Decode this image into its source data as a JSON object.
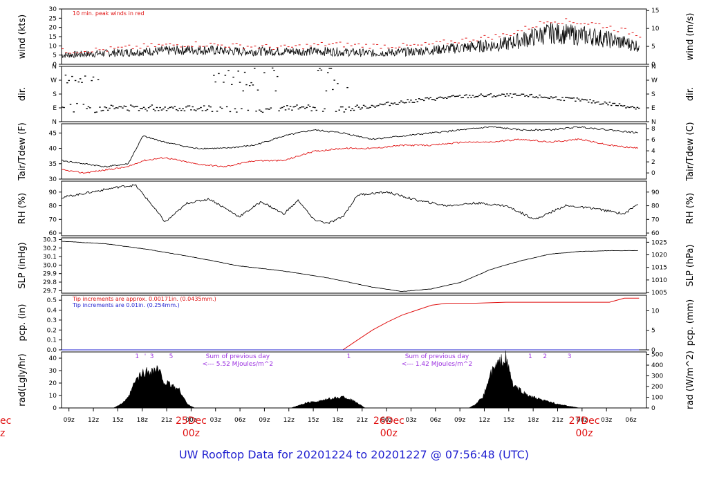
{
  "footer": {
    "title": "UW Rooftop Data for 20201224  to  20201227 @ 07:56:48  (UTC)"
  },
  "colors": {
    "black": "#000000",
    "red": "#e01010",
    "blue": "#1f1fd0",
    "purple": "#9b30e0"
  },
  "x_axis": {
    "hour_ticks": [
      "09z",
      "12z",
      "15z",
      "18z",
      "21z",
      "00z",
      "03z",
      "06z",
      "09z",
      "12z",
      "15z",
      "18z",
      "21z",
      "00z",
      "03z",
      "06z",
      "09z",
      "12z",
      "15z",
      "18z",
      "21z",
      "00z",
      "03z",
      "06z"
    ],
    "day_marks": [
      {
        "date": "25Dec",
        "hour": "00z"
      },
      {
        "date": "26Dec",
        "hour": "00z"
      },
      {
        "date": "27Dec",
        "hour": "00z"
      }
    ],
    "left_clipped": {
      "date": "ec",
      "hour": "z"
    }
  },
  "chart_data": [
    {
      "id": "wind",
      "type": "line",
      "ylabel_left": "wind (kts)",
      "ylabel_right": "wind (m/s)",
      "left_ticks": [
        "0",
        "5",
        "10",
        "15",
        "20",
        "25",
        "30"
      ],
      "left_range": [
        0,
        30
      ],
      "right_ticks": [
        "0",
        "5",
        "10",
        "15"
      ],
      "right_range_ms": [
        0,
        15
      ],
      "annotation": "10 min. peak winds in red",
      "series": [
        {
          "color": "red",
          "x": [
            0,
            6,
            12,
            18,
            24,
            30,
            36,
            42,
            48,
            54,
            60,
            66,
            72,
            78
          ],
          "values": [
            7,
            8,
            10,
            11,
            10,
            9,
            11,
            10,
            10,
            13,
            16,
            24,
            22,
            16
          ]
        },
        {
          "color": "black",
          "x": [
            0,
            6,
            12,
            18,
            24,
            30,
            36,
            42,
            48,
            54,
            60,
            66,
            72,
            78
          ],
          "values": [
            5,
            6,
            7,
            8,
            7,
            7,
            7,
            6,
            7,
            9,
            11,
            17,
            15,
            10
          ]
        }
      ]
    },
    {
      "id": "dir",
      "type": "scatter",
      "ylabel_left": "dir.",
      "ylabel_right": "dir.",
      "left_ticks": [
        "N",
        "E",
        "S",
        "W",
        "N"
      ],
      "right_ticks": [
        "N",
        "E",
        "S",
        "W",
        "N"
      ]
    },
    {
      "id": "temp",
      "type": "line",
      "ylabel_left": "Tair/Tdew (F)",
      "ylabel_right": "Tair/Tdew (C)",
      "left_ticks": [
        "30",
        "35",
        "40",
        "45"
      ],
      "left_range": [
        30,
        48
      ],
      "right_ticks": [
        "0",
        "2",
        "4",
        "6",
        "8"
      ],
      "series": [
        {
          "name": "Tair",
          "color": "black",
          "x": [
            0,
            3,
            6,
            9,
            11,
            14,
            18,
            22,
            26,
            30,
            34,
            38,
            42,
            46,
            50,
            54,
            58,
            62,
            66,
            70,
            74,
            78
          ],
          "values": [
            36,
            35,
            34,
            35,
            44,
            42,
            40,
            40,
            41,
            44,
            46,
            45,
            43,
            44,
            45,
            46,
            47,
            46,
            46,
            47,
            46,
            45
          ]
        },
        {
          "name": "Tdew",
          "color": "red",
          "x": [
            0,
            3,
            6,
            9,
            11,
            14,
            18,
            22,
            26,
            30,
            34,
            38,
            42,
            46,
            50,
            54,
            58,
            62,
            66,
            70,
            74,
            78
          ],
          "values": [
            33,
            32,
            33,
            34,
            36,
            37,
            35,
            34,
            36,
            36,
            39,
            40,
            40,
            41,
            41,
            42,
            42,
            43,
            42,
            43,
            41,
            40
          ]
        }
      ]
    },
    {
      "id": "rh",
      "type": "line",
      "ylabel_left": "RH (%)",
      "ylabel_right": "RH (%)",
      "left_ticks": [
        "60",
        "70",
        "80",
        "90"
      ],
      "left_range": [
        58,
        98
      ],
      "right_ticks": [
        "60",
        "70",
        "80",
        "90"
      ],
      "series": [
        {
          "color": "black",
          "x": [
            0,
            4,
            8,
            10,
            12,
            14,
            17,
            20,
            24,
            27,
            30,
            32,
            34,
            36,
            38,
            40,
            44,
            48,
            52,
            56,
            60,
            64,
            68,
            72,
            76,
            78
          ],
          "values": [
            86,
            90,
            94,
            95,
            82,
            68,
            82,
            85,
            72,
            83,
            74,
            84,
            70,
            67,
            72,
            88,
            90,
            84,
            80,
            82,
            80,
            70,
            80,
            78,
            74,
            82
          ]
        }
      ]
    },
    {
      "id": "slp",
      "type": "line",
      "ylabel_left": "SLP (inHg)",
      "ylabel_right": "SLP (hPa)",
      "left_ticks": [
        "29.7",
        "29.8",
        "29.9",
        "30.0",
        "30.1",
        "30.2",
        "30.3"
      ],
      "left_range": [
        29.67,
        30.32
      ],
      "right_ticks": [
        "1005",
        "1010",
        "1015",
        "1020",
        "1025"
      ],
      "series": [
        {
          "color": "black",
          "x": [
            0,
            6,
            12,
            18,
            24,
            30,
            36,
            42,
            46,
            50,
            54,
            58,
            62,
            66,
            70,
            74,
            78
          ],
          "values": [
            30.28,
            30.25,
            30.18,
            30.09,
            29.99,
            29.93,
            29.85,
            29.74,
            29.69,
            29.72,
            29.8,
            29.95,
            30.05,
            30.13,
            30.16,
            30.17,
            30.17
          ]
        }
      ]
    },
    {
      "id": "pcp",
      "type": "line",
      "ylabel_left": "pcp. (in)",
      "ylabel_right": "pcp. (mm)",
      "left_ticks": [
        "0.0",
        "0.1",
        "0.2",
        "0.3",
        "0.4",
        "0.5"
      ],
      "left_range": [
        0,
        0.55
      ],
      "right_ticks": [
        "0",
        "5",
        "10"
      ],
      "notes": [
        {
          "text": "Tip increments are approx. 0.00171in. (0.0435mm.)",
          "color": "red"
        },
        {
          "text": "Tip increments are 0.01in. (0.254mm.)",
          "color": "blue"
        }
      ],
      "series": [
        {
          "color": "red",
          "x": [
            0,
            38,
            40,
            42,
            44,
            46,
            48,
            50,
            52,
            56,
            60,
            66,
            74,
            76,
            78
          ],
          "values": [
            0,
            0,
            0.1,
            0.2,
            0.28,
            0.35,
            0.4,
            0.45,
            0.47,
            0.47,
            0.48,
            0.48,
            0.48,
            0.52,
            0.52
          ]
        },
        {
          "color": "blue",
          "x": [
            0,
            78
          ],
          "values": [
            0,
            0
          ]
        }
      ]
    },
    {
      "id": "rad",
      "type": "area",
      "ylabel_left": "rad(Lgly/hr)",
      "ylabel_right": "rad (W/m^2)",
      "left_ticks": [
        "0",
        "10",
        "20",
        "30",
        "40"
      ],
      "left_range": [
        0,
        45
      ],
      "right_ticks": [
        "0",
        "100",
        "200",
        "300",
        "400",
        "500"
      ],
      "markers": [
        {
          "text": "1",
          "x": 10.2
        },
        {
          "text": "'",
          "x": 11.3
        },
        {
          "text": "3",
          "x": 12.2
        },
        {
          "text": "5",
          "x": 14.8
        },
        {
          "text": "1",
          "x": 38.8
        },
        {
          "text": "1",
          "x": 63.3
        },
        {
          "text": "2",
          "x": 65.3
        },
        {
          "text": "3",
          "x": 68.6
        }
      ],
      "notes": [
        {
          "line1": "Sum of previous day",
          "line2": "<--- 5.52 MJoules/m^2",
          "x": 23.8
        },
        {
          "line1": "Sum of previous day",
          "line2": "<--- 1.42 MJoules/m^2",
          "x": 50.7
        }
      ],
      "series": [
        {
          "color": "black",
          "x": [
            7,
            8,
            9,
            10,
            11,
            12,
            13,
            14,
            15,
            16,
            17,
            18,
            31,
            32,
            33,
            34,
            35,
            36,
            37,
            38,
            39,
            40,
            41,
            55,
            56,
            57,
            58,
            59,
            60,
            61,
            62,
            63,
            64,
            65,
            66,
            67,
            68,
            69,
            70
          ],
          "values": [
            0,
            3,
            8,
            22,
            28,
            30,
            31,
            20,
            18,
            14,
            3,
            0,
            0,
            2,
            4,
            5,
            6,
            7,
            8,
            9,
            7,
            4,
            0,
            0,
            3,
            10,
            28,
            36,
            40,
            18,
            14,
            10,
            8,
            6,
            5,
            3,
            2,
            1,
            0
          ]
        }
      ]
    }
  ]
}
